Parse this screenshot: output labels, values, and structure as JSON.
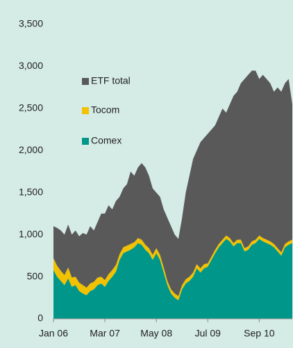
{
  "chart_data": {
    "type": "stacked_area",
    "categories": [
      "Jan 06",
      null,
      null,
      null,
      null,
      null,
      null,
      null,
      null,
      null,
      null,
      null,
      null,
      null,
      "Mar 07",
      null,
      null,
      null,
      null,
      null,
      null,
      null,
      null,
      null,
      null,
      null,
      null,
      null,
      "May 08",
      null,
      null,
      null,
      null,
      null,
      null,
      null,
      null,
      null,
      null,
      null,
      null,
      null,
      "Jul 09",
      null,
      null,
      null,
      null,
      null,
      null,
      null,
      null,
      null,
      null,
      null,
      null,
      null,
      "Sep 10",
      null,
      null,
      null,
      null,
      null,
      null,
      null,
      null,
      null
    ],
    "series": [
      {
        "name": "Comex",
        "color": "#00978a",
        "values": [
          580,
          500,
          450,
          400,
          480,
          380,
          400,
          330,
          300,
          280,
          330,
          350,
          400,
          420,
          380,
          450,
          500,
          560,
          700,
          780,
          800,
          820,
          850,
          900,
          880,
          820,
          780,
          700,
          780,
          700,
          550,
          400,
          300,
          250,
          220,
          350,
          420,
          450,
          500,
          600,
          550,
          600,
          620,
          700,
          780,
          850,
          900,
          950,
          920,
          860,
          900,
          900,
          800,
          820,
          880,
          900,
          950,
          920,
          900,
          880,
          850,
          800,
          750,
          850,
          880,
          900
        ]
      },
      {
        "name": "Tocom",
        "color": "#f2c100",
        "values": [
          140,
          130,
          120,
          120,
          130,
          110,
          100,
          100,
          100,
          90,
          90,
          90,
          90,
          80,
          80,
          80,
          80,
          80,
          70,
          70,
          70,
          70,
          60,
          60,
          60,
          60,
          60,
          60,
          60,
          60,
          60,
          50,
          50,
          50,
          50,
          50,
          50,
          50,
          50,
          50,
          50,
          50,
          40,
          40,
          40,
          40,
          40,
          40,
          40,
          40,
          40,
          40,
          40,
          40,
          40,
          40,
          40,
          40,
          40,
          40,
          40,
          40,
          40,
          40,
          40,
          40
        ]
      },
      {
        "name": "ETF total",
        "color": "#595959",
        "values": [
          380,
          450,
          480,
          480,
          510,
          510,
          550,
          550,
          620,
          630,
          680,
          610,
          660,
          750,
          790,
          820,
          720,
          760,
          680,
          700,
          730,
          860,
          790,
          840,
          910,
          920,
          860,
          790,
          660,
          690,
          690,
          750,
          750,
          700,
          680,
          800,
          1030,
          1200,
          1350,
          1350,
          1500,
          1500,
          1540,
          1510,
          1480,
          1510,
          1560,
          1460,
          1590,
          1750,
          1760,
          1860,
          2010,
          2040,
          2030,
          2010,
          1860,
          1940,
          1910,
          1880,
          1810,
          1910,
          1910,
          1910,
          1930,
          1610
        ]
      }
    ],
    "ylim": [
      0,
      3500
    ],
    "yticks": [
      0,
      500,
      {
        "value": 1000,
        "label": "1,000"
      },
      {
        "value": 1500,
        "label": "1,500"
      },
      {
        "value": 2000,
        "label": "2,000"
      },
      {
        "value": 2500,
        "label": "2,500"
      },
      {
        "value": 3000,
        "label": "3,000"
      },
      {
        "value": 3500,
        "label": "3,500"
      }
    ]
  }
}
